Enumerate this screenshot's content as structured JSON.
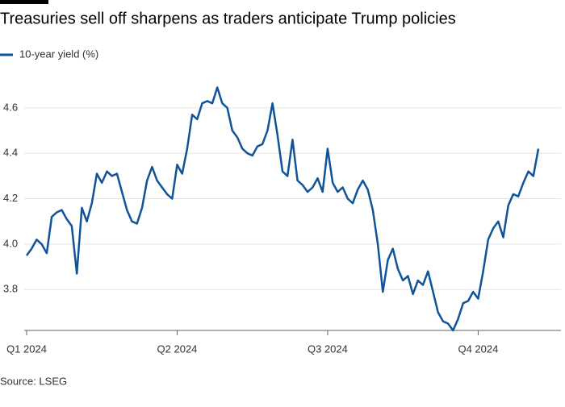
{
  "chart_data": {
    "type": "line",
    "title": "Treasuries sell off sharpens as traders anticipate Trump policies",
    "source": "Source: LSEG",
    "categories": [
      "Q1 2024",
      null,
      null,
      null,
      null,
      null,
      null,
      null,
      null,
      null,
      null,
      null,
      null,
      null,
      null,
      null,
      null,
      null,
      null,
      null,
      null,
      null,
      null,
      null,
      null,
      null,
      null,
      null,
      null,
      null,
      "Q2 2024",
      null,
      null,
      null,
      null,
      null,
      null,
      null,
      null,
      null,
      null,
      null,
      null,
      null,
      null,
      null,
      null,
      null,
      null,
      null,
      null,
      null,
      null,
      null,
      null,
      null,
      null,
      null,
      null,
      null,
      "Q3 2024",
      null,
      null,
      null,
      null,
      null,
      null,
      null,
      null,
      null,
      null,
      null,
      null,
      null,
      null,
      null,
      null,
      null,
      null,
      null,
      null,
      null,
      null,
      null,
      null,
      null,
      null,
      null,
      null,
      null,
      "Q4 2024",
      null,
      null,
      null,
      null,
      null,
      null,
      null,
      null,
      null,
      null,
      null,
      null
    ],
    "series": [
      {
        "name": "10-year yield (%)",
        "color": "#0f5499",
        "values": [
          3.95,
          3.98,
          4.02,
          4.0,
          3.96,
          4.12,
          4.14,
          4.15,
          4.11,
          4.08,
          3.87,
          4.16,
          4.1,
          4.18,
          4.31,
          4.27,
          4.32,
          4.3,
          4.31,
          4.23,
          4.15,
          4.1,
          4.09,
          4.16,
          4.28,
          4.34,
          4.28,
          4.25,
          4.22,
          4.2,
          4.35,
          4.31,
          4.42,
          4.57,
          4.55,
          4.62,
          4.63,
          4.62,
          4.69,
          4.62,
          4.6,
          4.5,
          4.47,
          4.42,
          4.4,
          4.39,
          4.43,
          4.44,
          4.5,
          4.62,
          4.48,
          4.32,
          4.3,
          4.46,
          4.28,
          4.26,
          4.23,
          4.25,
          4.29,
          4.23,
          4.42,
          4.27,
          4.23,
          4.25,
          4.2,
          4.18,
          4.24,
          4.28,
          4.24,
          4.15,
          4.0,
          3.79,
          3.93,
          3.98,
          3.89,
          3.84,
          3.86,
          3.78,
          3.84,
          3.82,
          3.88,
          3.79,
          3.7,
          3.66,
          3.65,
          3.62,
          3.67,
          3.74,
          3.75,
          3.79,
          3.76,
          3.88,
          4.02,
          4.07,
          4.1,
          4.03,
          4.17,
          4.22,
          4.21,
          4.27,
          4.32,
          4.3,
          4.42
        ]
      }
    ],
    "ylim": [
      3.62,
      4.72
    ],
    "yticks": [
      {
        "value": 3.8,
        "label": "3.8"
      },
      {
        "value": 4.0,
        "label": "4.0"
      },
      {
        "value": 4.2,
        "label": "4.2"
      },
      {
        "value": 4.4,
        "label": "4.4"
      },
      {
        "value": 4.6,
        "label": "4.6"
      }
    ],
    "grid": true
  }
}
